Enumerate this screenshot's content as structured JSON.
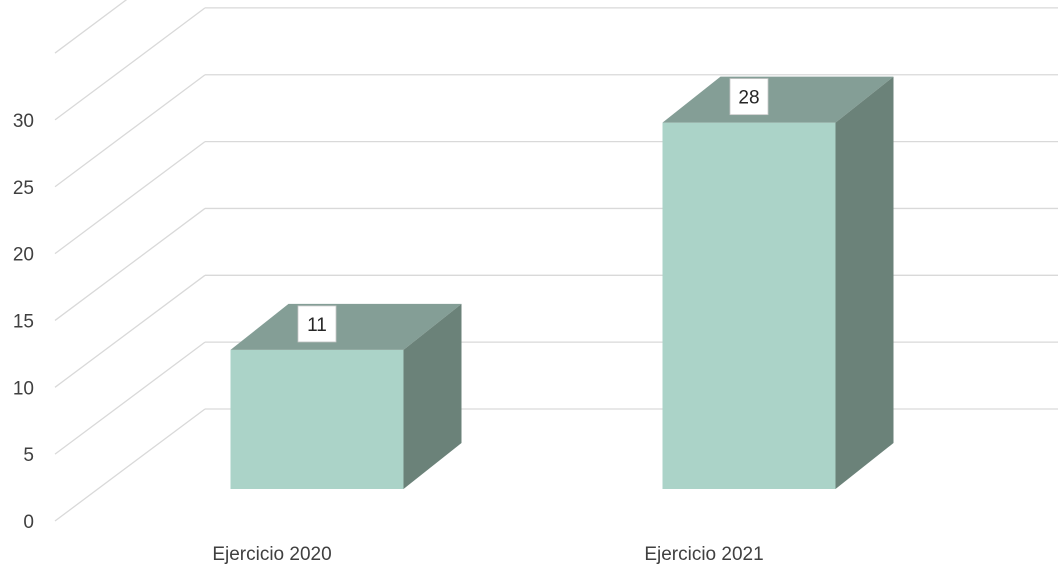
{
  "chart_data": {
    "type": "bar",
    "style": "3d-column",
    "title": "",
    "xlabel": "",
    "ylabel": "",
    "categories": [
      "Ejercicio 2020",
      "Ejercicio 2021"
    ],
    "series": [
      {
        "values": [
          11,
          28
        ]
      }
    ],
    "data_labels": [
      "11",
      "28"
    ],
    "ylim": [
      0,
      35
    ],
    "yticks": [
      0,
      5,
      10,
      15,
      20,
      25,
      30
    ],
    "ytick_labels": [
      "0",
      "5",
      "10",
      "15",
      "20",
      "25",
      "30"
    ],
    "grid": true,
    "legend": "none",
    "colors": {
      "bar_front": "#abd3c8",
      "bar_top": "#849e96",
      "bar_side": "#6b8279",
      "grid": "#d9d9d9",
      "text": "#404040"
    }
  }
}
